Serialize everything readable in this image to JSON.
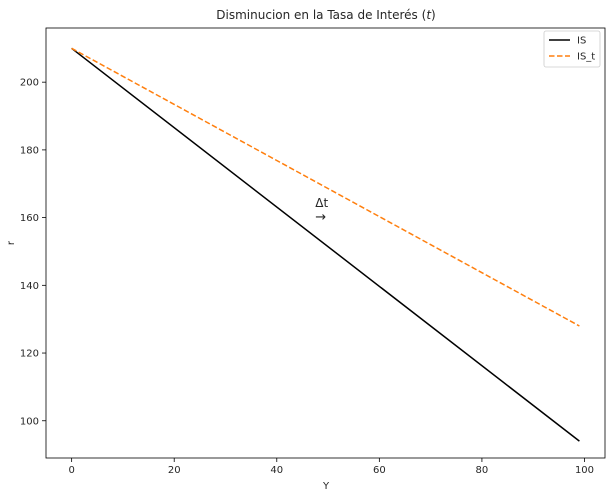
{
  "chart_data": {
    "type": "line",
    "title": "Disminucion en la Tasa de Interés (t)",
    "xlabel": "Y",
    "ylabel": "r",
    "xlim": [
      -5,
      104
    ],
    "ylim": [
      89,
      216
    ],
    "xticks": [
      0,
      20,
      40,
      60,
      80,
      100
    ],
    "yticks": [
      100,
      120,
      140,
      160,
      180,
      200
    ],
    "grid": false,
    "legend_position": "top-right",
    "series": [
      {
        "name": "IS",
        "color": "#000000",
        "dash": "solid",
        "x": [
          0,
          99
        ],
        "y": [
          210,
          94
        ]
      },
      {
        "name": "IS_t",
        "color": "#ff7f0e",
        "dash": "dashed",
        "x": [
          0,
          99
        ],
        "y": [
          210,
          128
        ]
      }
    ],
    "annotation": {
      "text": "Δt",
      "arrow": "→",
      "x": 47.5,
      "y": 162
    }
  }
}
